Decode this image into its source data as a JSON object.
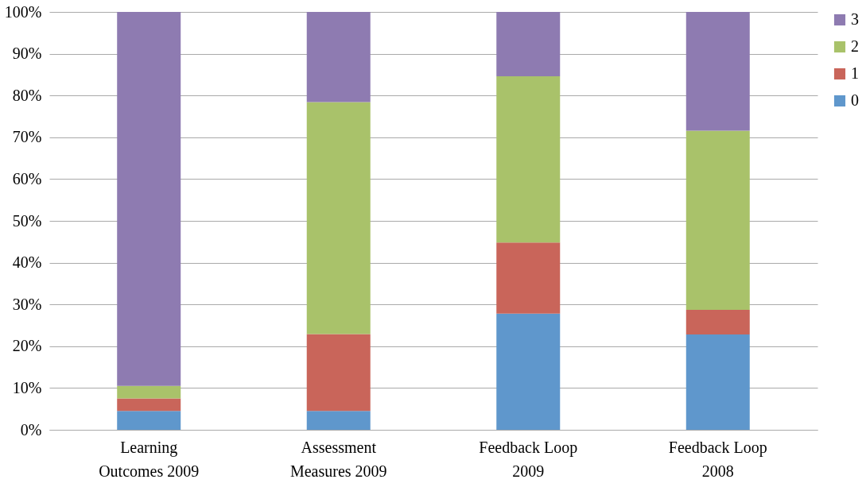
{
  "chart_data": {
    "type": "bar",
    "stacked": true,
    "categories": [
      "Learning Outcomes 2009",
      "Assessment Measures 2009",
      "Feedback Loop 2009",
      "Feedback Loop 2008"
    ],
    "series": [
      {
        "name": "0",
        "color": "#5f97cc",
        "values": [
          4.5,
          4.5,
          27.8,
          22.8
        ]
      },
      {
        "name": "1",
        "color": "#c9655a",
        "values": [
          3,
          18.4,
          17,
          5.9
        ]
      },
      {
        "name": "2",
        "color": "#a9c26a",
        "values": [
          3,
          55.5,
          39.8,
          42.9
        ]
      },
      {
        "name": "3",
        "color": "#8e7bb1",
        "values": [
          89.5,
          21.6,
          15.4,
          28.4
        ]
      }
    ],
    "ylim": [
      0,
      100
    ],
    "yticks": [
      {
        "value": 0,
        "label": "0%"
      },
      {
        "value": 10,
        "label": "10%"
      },
      {
        "value": 20,
        "label": "20%"
      },
      {
        "value": 30,
        "label": "30%"
      },
      {
        "value": 40,
        "label": "40%"
      },
      {
        "value": 50,
        "label": "50%"
      },
      {
        "value": 60,
        "label": "60%"
      },
      {
        "value": 70,
        "label": "70%"
      },
      {
        "value": 80,
        "label": "80%"
      },
      {
        "value": 90,
        "label": "90%"
      },
      {
        "value": 100,
        "label": "100%"
      }
    ],
    "grid": "y",
    "legend": "right"
  }
}
